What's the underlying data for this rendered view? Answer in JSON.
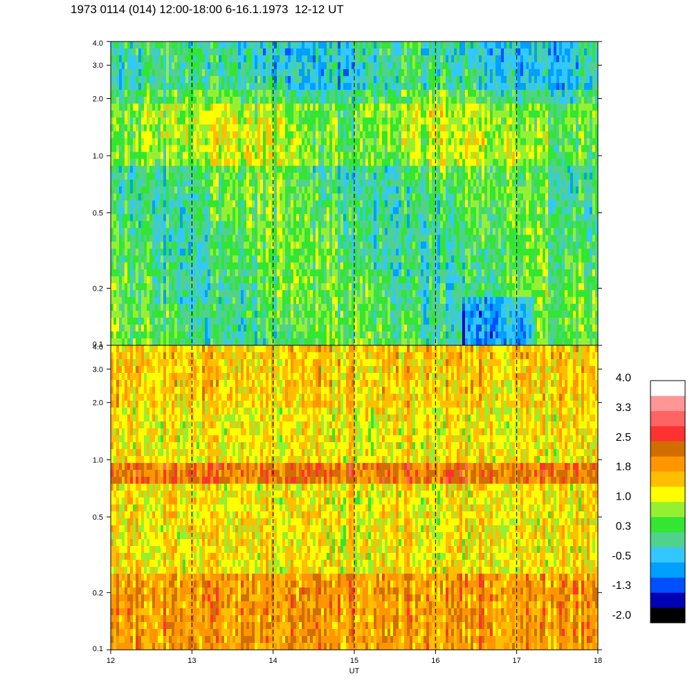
{
  "title": "1973 0114 (014) 12:00-18:00 6-16.1.1973  12-12 UT",
  "chart_data": [
    {
      "type": "heatmap",
      "panel": "top",
      "x_range": [
        12,
        18
      ],
      "y_scale": "log",
      "y_range": [
        0.1,
        4.0
      ],
      "y_ticks": [
        "4.0",
        "3.0",
        "2.0",
        "1.0",
        "0.5",
        "0.2",
        "0.1"
      ],
      "y_tick_values": [
        4.0,
        3.0,
        2.0,
        1.0,
        0.5,
        0.2,
        0.1
      ],
      "dominant_levels": [
        -0.5,
        0.3,
        1.0
      ]
    },
    {
      "type": "heatmap",
      "panel": "bottom",
      "x_range": [
        12,
        18
      ],
      "y_scale": "log",
      "y_range": [
        0.1,
        4.0
      ],
      "y_ticks": [
        "4.0",
        "3.0",
        "2.0",
        "1.0",
        "0.5",
        "0.2",
        "0.1"
      ],
      "y_tick_values": [
        4.0,
        3.0,
        2.0,
        1.0,
        0.5,
        0.2,
        0.1
      ],
      "dominant_levels": [
        1.0,
        1.8,
        2.5
      ],
      "band_center": 0.85
    }
  ],
  "x_axis": {
    "label": "UT",
    "ticks": [
      "12",
      "13",
      "14",
      "15",
      "16",
      "17",
      "18"
    ],
    "tick_values": [
      12,
      13,
      14,
      15,
      16,
      17,
      18
    ],
    "dashed_gridlines": [
      13,
      14,
      15,
      16,
      17
    ]
  },
  "colorbar": {
    "labels": [
      "4.0",
      "3.3",
      "2.5",
      "1.8",
      "1.0",
      "0.3",
      "-0.5",
      "-1.3",
      "-2.0"
    ],
    "colors": [
      "#000000",
      "#0000b4",
      "#0050ff",
      "#00a0ff",
      "#32c8ff",
      "#50d28c",
      "#32e632",
      "#96f032",
      "#ffff00",
      "#ffbe00",
      "#ff9600",
      "#d26e00",
      "#ff3232",
      "#ff6464",
      "#ff9696",
      "#ffffff"
    ]
  }
}
